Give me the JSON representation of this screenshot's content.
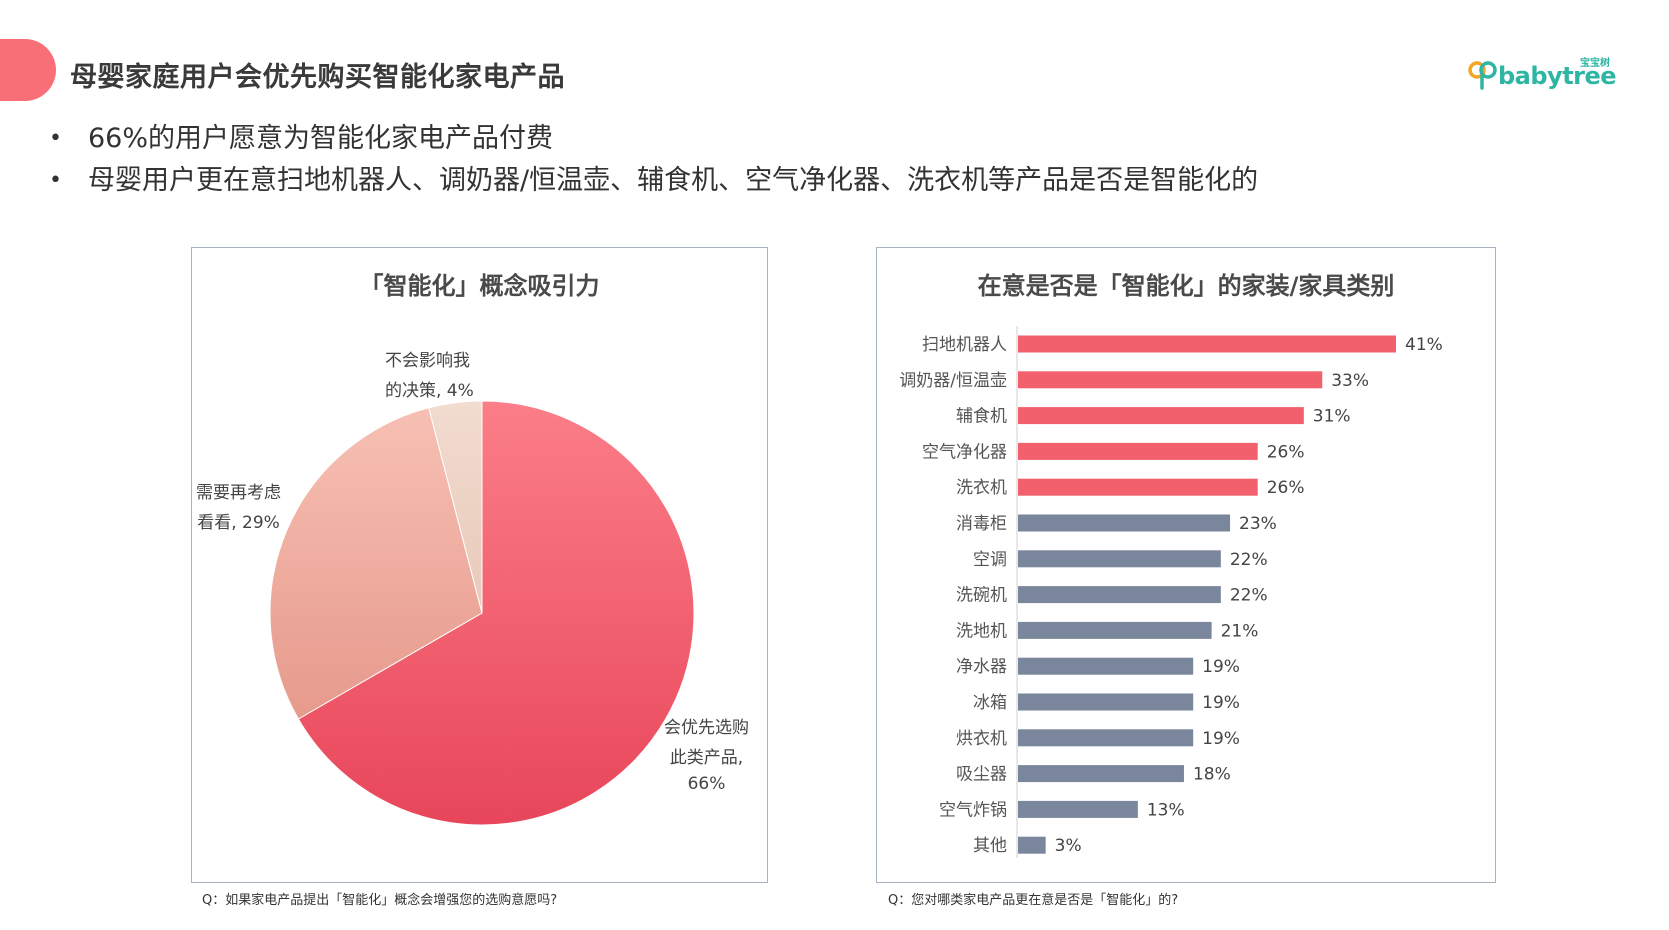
{
  "header": {
    "title": "母婴家庭用户会优先购买智能化家电产品",
    "logo_cn": "宝宝树",
    "logo_en": "babytree"
  },
  "bullets": [
    "66%的用户愿意为智能化家电产品付费",
    "母婴用户更在意扫地机器人、调奶器/恒温壶、辅食机、空气净化器、洗衣机等产品是否是智能化的"
  ],
  "bullet_symbol": "•",
  "colors": {
    "accent": "#f86f77",
    "highlight_bar": "#f2606d",
    "normal_bar": "#7a869b",
    "pie_main": "#f05e6c",
    "pie_consider": "#f0a69b",
    "pie_no": "#ecd0c3",
    "brand": "#2fb5a3"
  },
  "chart_data": [
    {
      "type": "pie",
      "title": "「智能化」概念吸引力",
      "slices": [
        {
          "label_lines": [
            "会优先选购",
            "此类产品,",
            "66%"
          ],
          "value": 66
        },
        {
          "label_lines": [
            "需要再考虑",
            "看看, 29%"
          ],
          "value": 29
        },
        {
          "label_lines": [
            "不会影响我",
            "的决策, 4%"
          ],
          "value": 4
        }
      ],
      "question": "Q：如果家电产品提出「智能化」概念会增强您的选购意愿吗?"
    },
    {
      "type": "bar",
      "orientation": "horizontal",
      "title": "在意是否是「智能化」的家装/家具类别",
      "categories": [
        "扫地机器人",
        "调奶器/恒温壶",
        "辅食机",
        "空气净化器",
        "洗衣机",
        "消毒柜",
        "空调",
        "洗碗机",
        "洗地机",
        "净水器",
        "冰箱",
        "烘衣机",
        "吸尘器",
        "空气炸锅",
        "其他"
      ],
      "values": [
        41,
        33,
        31,
        26,
        26,
        23,
        22,
        22,
        21,
        19,
        19,
        19,
        18,
        13,
        3
      ],
      "value_labels": [
        "41%",
        "33%",
        "31%",
        "26%",
        "26%",
        "23%",
        "22%",
        "22%",
        "21%",
        "19%",
        "19%",
        "19%",
        "18%",
        "13%",
        "3%"
      ],
      "highlighted_count": 5,
      "xlim": [
        0,
        41
      ],
      "question": "Q：您对哪类家电产品更在意是否是「智能化」的?"
    }
  ]
}
